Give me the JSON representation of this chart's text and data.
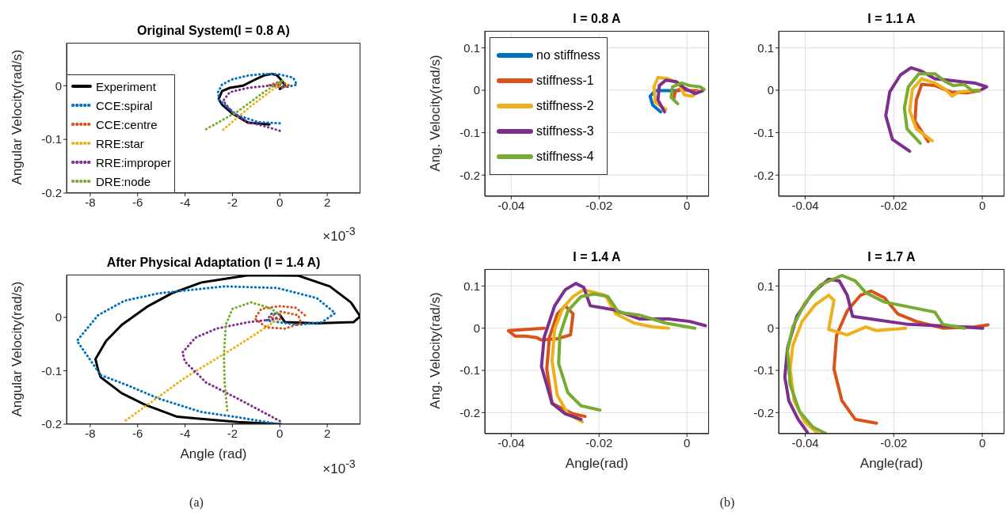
{
  "chart_data": [
    {
      "type": "line",
      "title": "Original System(I = 0.8 A)",
      "ylabel": "Angular Velocity(rad/s)",
      "annotations": [
        "×10$^{-3}$"
      ],
      "xlim": [
        -9,
        3.4
      ],
      "ylim": [
        -0.2,
        0.08
      ],
      "xticks": [
        -8,
        -6,
        -4,
        -2,
        0,
        2
      ],
      "yticks": [
        -0.2,
        -0.1,
        0
      ],
      "legend": "bottom left",
      "series": [
        {
          "name": "Experiment",
          "color": "#000000",
          "line_style": "solid",
          "x": [
            -0.44,
            -1.33,
            -2.0,
            -2.44,
            -2.58,
            -2.44,
            -2.11,
            -1.56,
            -1.11,
            -0.67,
            -0.33,
            -0.11,
            0.11,
            0.22,
            0
          ],
          "values": [
            -0.072,
            -0.069,
            -0.052,
            -0.035,
            -0.025,
            -0.01,
            -0.004,
            0,
            0.01,
            0.019,
            0.022,
            0.019,
            0.008,
            0,
            -0.006
          ]
        },
        {
          "name": "CCE:spiral",
          "color": "#0072bd",
          "line_style": "dotted",
          "x": [
            0,
            -0.89,
            -1.78,
            -2.22,
            -2.56,
            -2.61,
            -2.44,
            -2.0,
            -1.33,
            -0.67,
            0,
            0.56,
            0.72,
            0.33,
            0
          ],
          "values": [
            -0.07,
            -0.068,
            -0.055,
            -0.04,
            -0.026,
            -0.012,
            0.002,
            0.012,
            0.019,
            0.022,
            0.021,
            0.015,
            0.002,
            -0.002,
            0.001
          ]
        },
        {
          "name": "CCE:centre",
          "color": "#d95319",
          "line_style": "dotted",
          "x": [
            -0.44,
            -0.11,
            0.28,
            0.39,
            0.11,
            -0.22,
            0
          ],
          "values": [
            0.001,
            0.006,
            0.004,
            0,
            -0.004,
            -0.001,
            0.002
          ]
        },
        {
          "name": "RRE:star",
          "color": "#edb120",
          "line_style": "dotted",
          "x": [
            -2.39,
            -1.22,
            -0.33,
            0
          ],
          "values": [
            -0.082,
            -0.038,
            -0.008,
            0.001
          ]
        },
        {
          "name": "RRE:improper",
          "color": "#7e2f8e",
          "line_style": "dotted",
          "x": [
            0,
            -0.67,
            -1.33,
            -2.0,
            -2.39,
            -2.11,
            -1.33,
            -0.67,
            -0.22,
            0
          ],
          "values": [
            -0.084,
            -0.075,
            -0.068,
            -0.05,
            -0.028,
            -0.012,
            -0.004,
            -0.001,
            0.001,
            0.002
          ]
        },
        {
          "name": "DRE:node",
          "color": "#77ac30",
          "line_style": "dotted",
          "x": [
            -3.11,
            -1.78,
            -0.67,
            -0.11,
            0.11,
            0
          ],
          "values": [
            -0.081,
            -0.048,
            -0.012,
            0.004,
            0.01,
            0.002
          ]
        }
      ]
    },
    {
      "type": "line",
      "title": "After Physical Adaptation (I = 1.4 A)",
      "xlabel": "Angle (rad)",
      "ylabel": "Angular Velocity(rad/s)",
      "annotations": [
        "×10$^{-3}$",
        "(a)"
      ],
      "xlim": [
        -9,
        3.4
      ],
      "ylim": [
        -0.2,
        0.08
      ],
      "xticks": [
        -8,
        -6,
        -4,
        -2,
        0,
        2
      ],
      "yticks": [
        -0.2,
        -0.1,
        0
      ],
      "series": [
        {
          "color": "#000000",
          "line_style": "solid",
          "x": [
            0.06,
            -1.78,
            -4.33,
            -5.67,
            -6.67,
            -7.56,
            -7.67,
            -7.78,
            -7.33,
            -6.67,
            -5.56,
            -4.56,
            -3.33,
            -1.33,
            0.78,
            2.11,
            3.0,
            3.39,
            3.11,
            1.56,
            0.22,
            0.06,
            0
          ],
          "values": [
            -0.2,
            -0.196,
            -0.186,
            -0.164,
            -0.142,
            -0.112,
            -0.098,
            -0.078,
            -0.044,
            -0.014,
            0.021,
            0.045,
            0.065,
            0.079,
            0.078,
            0.058,
            0.028,
            0.002,
            -0.009,
            -0.011,
            -0.009,
            0.001,
            0.005
          ]
        },
        {
          "color": "#0072bd",
          "line_style": "dotted",
          "x": [
            0,
            -1.78,
            -3.33,
            -5.11,
            -6.44,
            -7.56,
            -8.56,
            -7.67,
            -6.56,
            -5.11,
            -2.33,
            -0.11,
            1.56,
            2.33,
            1.78,
            0.78,
            -0.56,
            -0.33,
            0
          ],
          "values": [
            -0.2,
            -0.187,
            -0.177,
            -0.152,
            -0.127,
            -0.108,
            -0.044,
            0.004,
            0.031,
            0.045,
            0.058,
            0.055,
            0.036,
            0.008,
            -0.009,
            -0.014,
            -0.006,
            0.008,
            0.005
          ]
        },
        {
          "color": "#d95319",
          "line_style": "dotted",
          "x": [
            1.06,
            0.67,
            0,
            -0.78,
            -1.06,
            -0.56,
            0.22,
            0.89,
            0.78,
            0,
            -0.44,
            0,
            0
          ],
          "values": [
            0.004,
            0.018,
            0.021,
            0.016,
            -0.002,
            -0.019,
            -0.021,
            -0.011,
            0.004,
            0.011,
            0,
            -0.004,
            0.004
          ]
        },
        {
          "color": "#edb120",
          "line_style": "dotted",
          "x": [
            -6.5,
            -4,
            -1.78,
            -0.67,
            -0.17,
            0
          ],
          "values": [
            -0.193,
            -0.113,
            -0.053,
            -0.021,
            -0.006,
            0
          ]
        },
        {
          "color": "#7e2f8e",
          "line_style": "dotted",
          "x": [
            0,
            -1.78,
            -3.11,
            -4,
            -4.11,
            -3.56,
            -2.67,
            -1.33,
            -0.33,
            0
          ],
          "values": [
            -0.194,
            -0.152,
            -0.122,
            -0.083,
            -0.066,
            -0.038,
            -0.021,
            -0.009,
            -0.004,
            0.001
          ]
        },
        {
          "color": "#77ac30",
          "line_style": "dotted",
          "x": [
            -2.22,
            -2.33,
            -2.36,
            -2.28,
            -2.0,
            -1.22,
            -0.44,
            0
          ],
          "values": [
            -0.174,
            -0.122,
            -0.073,
            -0.014,
            0.016,
            0.028,
            0.018,
            0.005
          ]
        }
      ]
    },
    {
      "type": "line",
      "title": "I = 0.8 A",
      "ylabel": "Ang. Velocity(rad/s)",
      "xlim": [
        -0.046,
        0.005
      ],
      "ylim": [
        -0.25,
        0.14
      ],
      "xticks": [
        -0.04,
        -0.02,
        0
      ],
      "yticks": [
        -0.2,
        -0.1,
        0,
        0.1
      ],
      "grid": true,
      "legend": "top left",
      "series": [
        {
          "name": "no stiffness",
          "color": "#0072bd",
          "x": [
            -0.006,
            -0.0078,
            -0.0084,
            -0.0072,
            -0.0042,
            -0.0018
          ],
          "values": [
            -0.051,
            -0.035,
            -0.014,
            -0.001,
            -0.001,
            -0.001
          ]
        },
        {
          "name": "stiffness-1",
          "color": "#d95319",
          "x": [
            -0.003,
            -0.0027,
            -0.0018,
            0.0006,
            0.0024
          ],
          "values": [
            -0.02,
            -0.004,
            0.002,
            -0.001,
            -0.001
          ]
        },
        {
          "name": "stiffness-2",
          "color": "#edb120",
          "x": [
            -0.0048,
            -0.0072,
            -0.0075,
            -0.0066,
            -0.0042,
            -0.0018,
            -0.0006,
            0.0012,
            0.0024
          ],
          "values": [
            -0.045,
            -0.029,
            0.008,
            0.03,
            0.027,
            0.014,
            -0.011,
            -0.014,
            -0.004
          ]
        },
        {
          "name": "stiffness-3",
          "color": "#7e2f8e",
          "x": [
            -0.0051,
            -0.0066,
            -0.0063,
            -0.0048,
            -0.0024,
            -0.0006,
            0.0018,
            0.0036
          ],
          "values": [
            -0.051,
            -0.023,
            0.011,
            0.024,
            0.02,
            0.005,
            -0.008,
            -0.001
          ]
        },
        {
          "name": "stiffness-4",
          "color": "#77ac30",
          "x": [
            -0.0021,
            -0.0036,
            -0.0033,
            -0.0012,
            0.0006,
            0.003,
            0.0039
          ],
          "values": [
            -0.032,
            -0.017,
            0.008,
            0.017,
            0.011,
            0.008,
            0.002
          ]
        }
      ]
    },
    {
      "type": "line",
      "title": "I = 1.1 A",
      "xlim": [
        -0.046,
        0.005
      ],
      "ylim": [
        -0.25,
        0.14
      ],
      "xticks": [
        -0.04,
        -0.02,
        0
      ],
      "yticks": [
        -0.2,
        -0.1,
        0,
        0.1
      ],
      "grid": true,
      "series": [
        {
          "color": "#d95319",
          "x": [
            -0.0122,
            -0.0152,
            -0.0149,
            -0.0137,
            -0.0107,
            -0.0071,
            -0.0035,
            -0.0005
          ],
          "values": [
            -0.121,
            -0.073,
            -0.023,
            0.014,
            0.011,
            -0.004,
            -0.006,
            -0.001
          ]
        },
        {
          "color": "#edb120",
          "x": [
            -0.0113,
            -0.0149,
            -0.0164,
            -0.0158,
            -0.0137,
            -0.0107,
            -0.0083,
            -0.0068,
            -0.0053,
            -0.0023,
            -0.0005
          ],
          "values": [
            -0.119,
            -0.091,
            -0.048,
            0.002,
            0.027,
            0.017,
            0.002,
            -0.014,
            -0.004,
            -0.001,
            0
          ]
        },
        {
          "color": "#7e2f8e",
          "x": [
            -0.0164,
            -0.0203,
            -0.0218,
            -0.0209,
            -0.0185,
            -0.0161,
            -0.0137,
            -0.0107,
            -0.0077,
            -0.0047,
            -0.0017,
            0.001,
            -0.0001
          ],
          "values": [
            -0.144,
            -0.116,
            -0.06,
            -0.004,
            0.036,
            0.053,
            0.045,
            0.027,
            0.024,
            0.02,
            0.017,
            0.008,
            0.002
          ]
        },
        {
          "color": "#77ac30",
          "x": [
            -0.014,
            -0.017,
            -0.0176,
            -0.0167,
            -0.0143,
            -0.0107,
            -0.0083,
            -0.0065,
            -0.0041,
            -0.0023,
            -0.0008
          ],
          "values": [
            -0.125,
            -0.091,
            -0.042,
            0.008,
            0.039,
            0.039,
            0.02,
            0.011,
            0.014,
            -0.001,
            -0.001
          ]
        }
      ]
    },
    {
      "type": "line",
      "title": "I = 1.4 A",
      "xlabel": "Angle(rad)",
      "ylabel": "Ang. Velocity(rad/s)",
      "annotations": [
        "(b)"
      ],
      "xlim": [
        -0.046,
        0.005
      ],
      "ylim": [
        -0.25,
        0.14
      ],
      "xticks": [
        -0.04,
        -0.02,
        0
      ],
      "yticks": [
        -0.2,
        -0.1,
        0,
        0.1
      ],
      "grid": true,
      "series": [
        {
          "color": "#d95319",
          "x": [
            -0.0232,
            -0.0259,
            -0.0307,
            -0.0319,
            -0.0313,
            -0.0295,
            -0.0277,
            -0.0259,
            -0.0265,
            -0.0295,
            -0.0331,
            -0.0343,
            -0.0367,
            -0.0391,
            -0.0406,
            -0.0325
          ],
          "values": [
            -0.209,
            -0.203,
            -0.178,
            -0.097,
            -0.022,
            0.034,
            0.053,
            0.034,
            -0.016,
            -0.025,
            -0.028,
            -0.022,
            -0.019,
            -0.019,
            -0.006,
            0
          ]
        },
        {
          "color": "#edb120",
          "x": [
            -0.0238,
            -0.0271,
            -0.0295,
            -0.0307,
            -0.0301,
            -0.0283,
            -0.0259,
            -0.0235,
            -0.0186,
            -0.0162,
            -0.012,
            -0.0078,
            -0.0042
          ],
          "values": [
            -0.222,
            -0.203,
            -0.159,
            -0.078,
            -0.003,
            0.047,
            0.075,
            0.091,
            0.078,
            0.034,
            0.012,
            0.003,
            0
          ]
        },
        {
          "color": "#7e2f8e",
          "x": [
            -0.0241,
            -0.0277,
            -0.0307,
            -0.0331,
            -0.0325,
            -0.0301,
            -0.0277,
            -0.0253,
            -0.0235,
            -0.022,
            -0.0168,
            -0.0108,
            -0.0042,
            0.0006,
            0.0042
          ],
          "values": [
            -0.216,
            -0.203,
            -0.178,
            -0.091,
            -0.022,
            0.053,
            0.091,
            0.106,
            0.097,
            0.053,
            0.044,
            0.022,
            0.022,
            0.016,
            0.006
          ]
        },
        {
          "color": "#77ac30",
          "x": [
            -0.0198,
            -0.0241,
            -0.0271,
            -0.0292,
            -0.0289,
            -0.0271,
            -0.0241,
            -0.0211,
            -0.018,
            -0.0156,
            -0.0108,
            -0.0048,
            0.0018
          ],
          "values": [
            -0.194,
            -0.184,
            -0.153,
            -0.084,
            -0.016,
            0.041,
            0.075,
            0.081,
            0.075,
            0.038,
            0.031,
            0.012,
            0
          ]
        }
      ]
    },
    {
      "type": "line",
      "title": "I = 1.7 A",
      "xlabel": "Angle(rad)",
      "xlim": [
        -0.046,
        0.005
      ],
      "ylim": [
        -0.25,
        0.14
      ],
      "xticks": [
        -0.04,
        -0.02,
        0
      ],
      "yticks": [
        -0.2,
        -0.1,
        0,
        0.1
      ],
      "grid": true,
      "series": [
        {
          "color": "#d95319",
          "x": [
            -0.0239,
            -0.0287,
            -0.0317,
            -0.0335,
            -0.0329,
            -0.0305,
            -0.0275,
            -0.0251,
            -0.0221,
            -0.0191,
            -0.0149,
            -0.0089,
            -0.0017,
            0.0013
          ],
          "values": [
            -0.225,
            -0.216,
            -0.172,
            -0.097,
            -0.016,
            0.041,
            0.078,
            0.088,
            0.072,
            0.034,
            0.016,
            0,
            0.003,
            0.008
          ]
        },
        {
          "color": "#edb120",
          "x": [
            -0.0371,
            -0.0401,
            -0.0425,
            -0.0434,
            -0.0428,
            -0.0407,
            -0.0377,
            -0.0347,
            -0.0335,
            -0.0347,
            -0.0305,
            -0.0263,
            -0.0239,
            -0.0173
          ],
          "values": [
            -0.25,
            -0.222,
            -0.172,
            -0.097,
            -0.041,
            0.016,
            0.056,
            0.078,
            0.066,
            -0.003,
            -0.016,
            0.003,
            -0.006,
            0
          ]
        },
        {
          "color": "#7e2f8e",
          "x": [
            -0.0395,
            -0.0416,
            -0.0437,
            -0.0446,
            -0.044,
            -0.0419,
            -0.0383,
            -0.0347,
            -0.0323,
            -0.0305,
            -0.0293,
            -0.0167,
            -0.0047,
            0.0001
          ],
          "values": [
            -0.247,
            -0.216,
            -0.172,
            -0.116,
            -0.047,
            0.028,
            0.084,
            0.116,
            0.112,
            0.078,
            0.028,
            0.009,
            0.003,
            0
          ]
        },
        {
          "color": "#77ac30",
          "x": [
            -0.0353,
            -0.0383,
            -0.0413,
            -0.0434,
            -0.044,
            -0.0428,
            -0.0401,
            -0.0365,
            -0.0317,
            -0.0287,
            -0.0263,
            -0.0221,
            -0.0107,
            -0.0089,
            -0.0041
          ],
          "values": [
            -0.25,
            -0.234,
            -0.197,
            -0.134,
            -0.053,
            0.003,
            0.059,
            0.103,
            0.125,
            0.112,
            0.084,
            0.062,
            0.038,
            0.009,
            0
          ]
        }
      ]
    }
  ]
}
